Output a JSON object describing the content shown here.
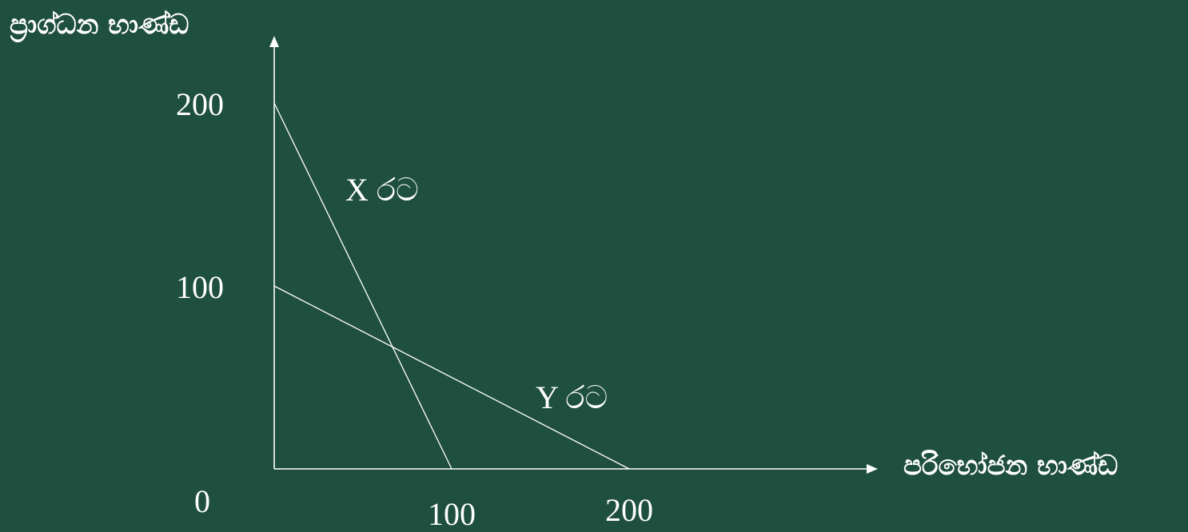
{
  "chart_data": {
    "type": "line",
    "title": "",
    "xlabel": "පරිභෝජන භාණ්ඩ",
    "ylabel": "ප්‍රාග්ධන භාණ්ඩ",
    "origin_label": "0",
    "x_ticks": [
      {
        "value": 100,
        "label": "100"
      },
      {
        "value": 200,
        "label": "200"
      }
    ],
    "y_ticks": [
      {
        "value": 100,
        "label": "100"
      },
      {
        "value": 200,
        "label": "200"
      }
    ],
    "xlim": [
      0,
      360
    ],
    "ylim": [
      0,
      200
    ],
    "grid": false,
    "series": [
      {
        "name": "X රට",
        "x": [
          0,
          100
        ],
        "y": [
          200,
          0
        ]
      },
      {
        "name": "Y රට",
        "x": [
          0,
          200
        ],
        "y": [
          100,
          0
        ]
      }
    ],
    "colors": {
      "background": "#1f4f3f",
      "foreground": "#ffffff"
    }
  }
}
